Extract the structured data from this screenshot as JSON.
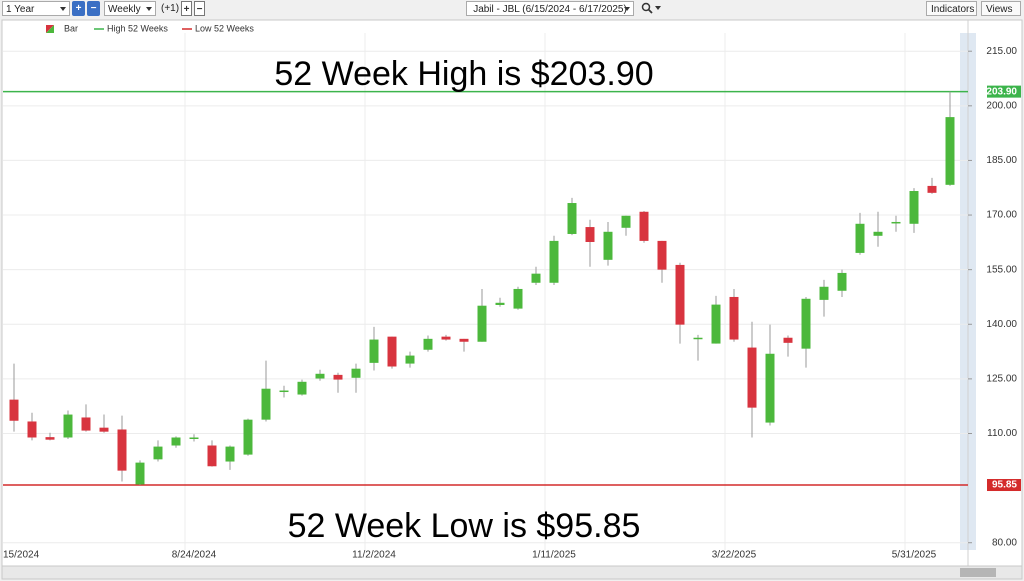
{
  "toolbar": {
    "period": "1 Year",
    "interval": "Weekly",
    "offset": "(+1)",
    "symbol": "Jabil - JBL (6/15/2024 - 6/17/2025)",
    "indicators": "Indicators",
    "views": "Views"
  },
  "chart_data": {
    "type": "candlestick",
    "series_name": "Bar",
    "up_color": "#4cb83c",
    "down_color": "#d8343f",
    "categories": [
      "15/2024",
      null,
      null,
      null,
      null,
      null,
      null,
      null,
      null,
      null,
      "8/24/2024",
      null,
      null,
      null,
      null,
      null,
      null,
      null,
      null,
      null,
      "11/2/2024",
      null,
      null,
      null,
      null,
      null,
      null,
      null,
      null,
      null,
      "1/11/2025",
      null,
      null,
      null,
      null,
      null,
      null,
      null,
      null,
      null,
      "3/22/2025",
      null,
      null,
      null,
      null,
      null,
      null,
      null,
      null,
      null,
      "5/31/2025",
      null,
      null
    ],
    "open": [
      119.3,
      113.3,
      109,
      108.9,
      114.4,
      111.6,
      111.1,
      96,
      102.9,
      106.7,
      108.6,
      106.7,
      102.3,
      104.2,
      113.8,
      121.5,
      120.7,
      125.1,
      126.1,
      125.3,
      129.4,
      136.6,
      129.2,
      133,
      136.6,
      136,
      135.2,
      145.3,
      144.3,
      151.4,
      151.4,
      164.8,
      166.7,
      157.7,
      166.5,
      170.9,
      162.9,
      156.3,
      136,
      134.7,
      147.5,
      133.6,
      113,
      136.3,
      133.3,
      146.7,
      149.2,
      159.6,
      164.3,
      167.8,
      167.6,
      178,
      178.3
    ],
    "high": [
      129.2,
      115.7,
      110.2,
      116.3,
      118,
      115.2,
      114.9,
      102.6,
      108.1,
      109.2,
      109.8,
      108.1,
      106.7,
      114.1,
      130,
      123.1,
      124.8,
      127.5,
      126.7,
      129.2,
      139.3,
      136.6,
      132.5,
      136.9,
      137.1,
      136,
      149.7,
      147.3,
      150.3,
      155.8,
      164.3,
      174.7,
      168.7,
      168.1,
      169.8,
      171.1,
      162.9,
      156.9,
      137.1,
      147.8,
      149.7,
      140.7,
      139.9,
      136.9,
      147.5,
      152.2,
      155,
      170.6,
      170.9,
      169.8,
      177.4,
      180.2,
      203.9
    ],
    "low": [
      110.5,
      108.1,
      108.1,
      108.5,
      110.5,
      110.2,
      96.8,
      95.85,
      102.3,
      106.1,
      107.8,
      100.9,
      100,
      103.9,
      113.3,
      119.9,
      120.4,
      124.5,
      121.2,
      121.2,
      127.3,
      127.8,
      128.1,
      132.5,
      135.5,
      132.5,
      135.2,
      144.8,
      144,
      150.8,
      150.8,
      164.5,
      155.8,
      156.1,
      164.3,
      162.4,
      151.4,
      134.7,
      130,
      134.7,
      135.2,
      108.9,
      112.2,
      131.1,
      128.1,
      142.1,
      147.5,
      159.1,
      161.3,
      165.4,
      165.1,
      175.8,
      178
    ],
    "close": [
      113.5,
      108.9,
      108.3,
      115.2,
      110.8,
      110.5,
      99.8,
      102,
      106.4,
      108.9,
      108.9,
      101,
      106.4,
      113.8,
      122.3,
      121.8,
      124.2,
      126.4,
      124.8,
      127.8,
      135.8,
      128.4,
      131.4,
      136,
      135.8,
      135.2,
      145.1,
      145.9,
      149.7,
      153.9,
      162.9,
      173.3,
      162.6,
      165.4,
      169.8,
      162.9,
      155,
      139.9,
      136.3,
      145.4,
      135.8,
      117.1,
      131.9,
      134.9,
      147,
      150.3,
      154.1,
      167.6,
      165.4,
      168.1,
      176.6,
      176.1,
      196.9
    ],
    "hlines": [
      {
        "name": "High 52 Weeks",
        "value": 203.9,
        "label": "203.90",
        "color": "#3cb44b",
        "annotation": "52 Week High is $203.90"
      },
      {
        "name": "Low 52 Weeks",
        "value": 95.85,
        "color": "#d42b2b",
        "annotation": "52 Week Low is $95.85"
      }
    ],
    "ylim": [
      78,
      220
    ],
    "yticks": [
      {
        "value": 80,
        "label": "80.00"
      },
      {
        "value": 110,
        "label": "110.00"
      },
      {
        "value": 125,
        "label": "125.00"
      },
      {
        "value": 140,
        "label": "140.00"
      },
      {
        "value": 155,
        "label": "155.00"
      },
      {
        "value": 170,
        "label": "170.00"
      },
      {
        "value": 185,
        "label": "185.00"
      },
      {
        "value": 200,
        "label": "200.00"
      },
      {
        "value": 215,
        "label": "215.00"
      }
    ],
    "grid": true
  }
}
